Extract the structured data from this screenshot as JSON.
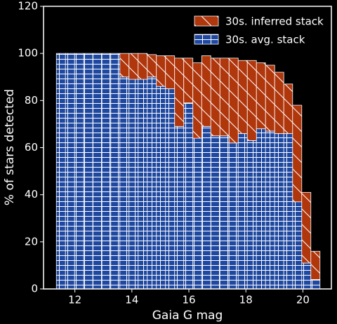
{
  "chart_data": {
    "type": "histogram",
    "xlabel": "Gaia G mag",
    "ylabel": "% of stars detected",
    "bins": [
      11.35,
      11.67,
      11.99,
      12.31,
      12.63,
      12.95,
      13.26,
      13.58,
      13.9,
      14.22,
      14.54,
      14.86,
      15.18,
      15.5,
      15.82,
      16.14,
      16.45,
      16.77,
      17.09,
      17.41,
      17.73,
      18.05,
      18.37,
      18.69,
      19.01,
      19.33,
      19.64,
      19.96,
      20.28,
      20.6
    ],
    "series": [
      {
        "name": "30s. avg. stack",
        "color": "#1f48a0",
        "hatch": "grid",
        "values": [
          100,
          100,
          100,
          100,
          100,
          100,
          100,
          90,
          89,
          89,
          90,
          86,
          85,
          69,
          79,
          64,
          69,
          65,
          65,
          62,
          66,
          63,
          68,
          67,
          66,
          66,
          37,
          11,
          4
        ]
      },
      {
        "name": "30s. inferred stack",
        "color": "#b0360c",
        "hatch": "diagonal",
        "values": [
          0,
          0,
          0,
          0,
          0,
          0,
          0,
          10,
          11,
          11,
          9.5,
          13,
          14,
          29,
          19,
          32,
          30,
          33,
          33,
          36,
          31,
          34,
          28,
          28,
          26,
          21,
          41,
          30,
          12
        ]
      }
    ],
    "stacked": true,
    "legend": "upper right",
    "xlim": [
      10.9,
      21.0
    ],
    "ylim": [
      0,
      120
    ],
    "xticks": [
      12,
      14,
      16,
      18,
      20
    ],
    "yticks": [
      0,
      20,
      40,
      60,
      80,
      100,
      120
    ]
  }
}
